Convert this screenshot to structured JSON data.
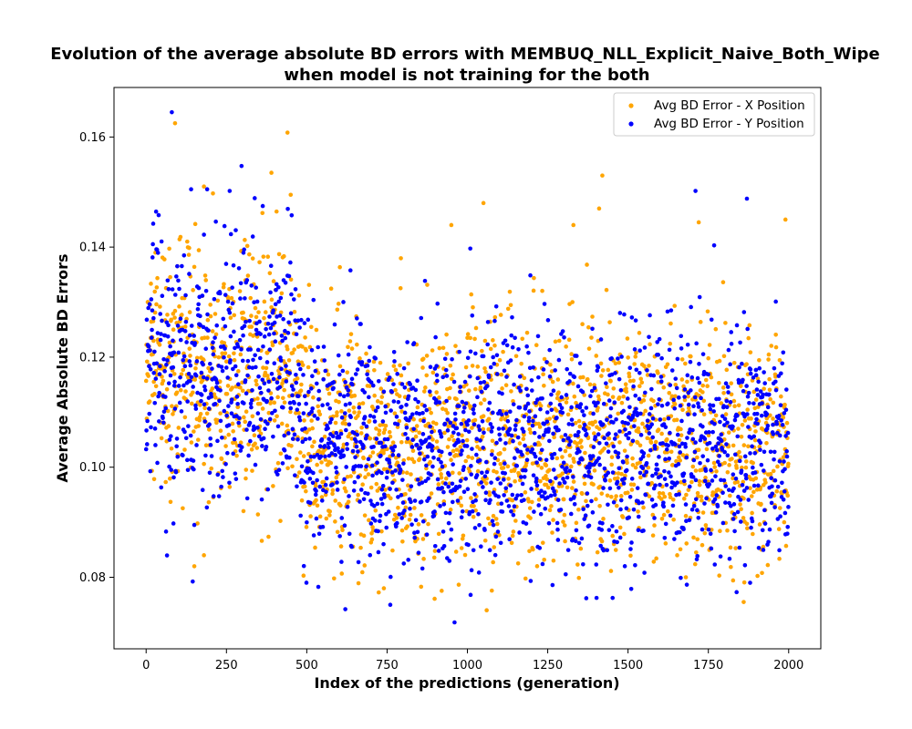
{
  "chart_data": {
    "type": "scatter",
    "title": "Evolution of the average absolute BD errors with MEMBUQ_NLL_Explicit_Naive_Both_Wipe",
    "subtitle": "when model is not training for the both",
    "xlabel": "Index of the predictions (generation)",
    "ylabel": "Average Absolute BD Errors",
    "xlim": [
      -100,
      2100
    ],
    "ylim": [
      0.067,
      0.169
    ],
    "xticks": [
      0,
      250,
      500,
      750,
      1000,
      1250,
      1500,
      1750,
      2000
    ],
    "yticks": [
      0.08,
      0.1,
      0.12,
      0.14,
      0.16
    ],
    "ytick_labels": [
      "0.08",
      "0.10",
      "0.12",
      "0.14",
      "0.16"
    ],
    "grid": false,
    "legend_position": "top-right",
    "n_points_per_series": 2000,
    "segments": [
      {
        "x_start": 0,
        "x_end": 480,
        "mean": 0.1165,
        "spread": 0.0115
      },
      {
        "x_start": 480,
        "x_end": 2000,
        "mean": 0.1045,
        "spread": 0.0105
      }
    ],
    "series": [
      {
        "name": "Avg BD Error - X Position",
        "color": "#FFA500",
        "outliers": [
          {
            "x": 90,
            "y": 0.1625
          },
          {
            "x": 180,
            "y": 0.151
          },
          {
            "x": 390,
            "y": 0.1535
          },
          {
            "x": 440,
            "y": 0.1608
          },
          {
            "x": 450,
            "y": 0.1495
          },
          {
            "x": 1050,
            "y": 0.148
          },
          {
            "x": 1420,
            "y": 0.153
          },
          {
            "x": 1410,
            "y": 0.147
          },
          {
            "x": 1330,
            "y": 0.144
          },
          {
            "x": 950,
            "y": 0.144
          },
          {
            "x": 1720,
            "y": 0.1445
          },
          {
            "x": 1990,
            "y": 0.145
          },
          {
            "x": 150,
            "y": 0.082
          },
          {
            "x": 180,
            "y": 0.084
          },
          {
            "x": 740,
            "y": 0.078
          },
          {
            "x": 1060,
            "y": 0.074
          },
          {
            "x": 1860,
            "y": 0.0755
          },
          {
            "x": 1680,
            "y": 0.08
          }
        ]
      },
      {
        "name": "Avg BD Error - Y Position",
        "color": "#0000FF",
        "outliers": [
          {
            "x": 80,
            "y": 0.1645
          },
          {
            "x": 140,
            "y": 0.1505
          },
          {
            "x": 190,
            "y": 0.1505
          },
          {
            "x": 260,
            "y": 0.1502
          },
          {
            "x": 1710,
            "y": 0.1502
          },
          {
            "x": 1870,
            "y": 0.1488
          },
          {
            "x": 620,
            "y": 0.0742
          },
          {
            "x": 760,
            "y": 0.075
          },
          {
            "x": 960,
            "y": 0.0718
          },
          {
            "x": 1010,
            "y": 0.0768
          },
          {
            "x": 1370,
            "y": 0.0762
          },
          {
            "x": 1880,
            "y": 0.079
          }
        ]
      }
    ]
  }
}
